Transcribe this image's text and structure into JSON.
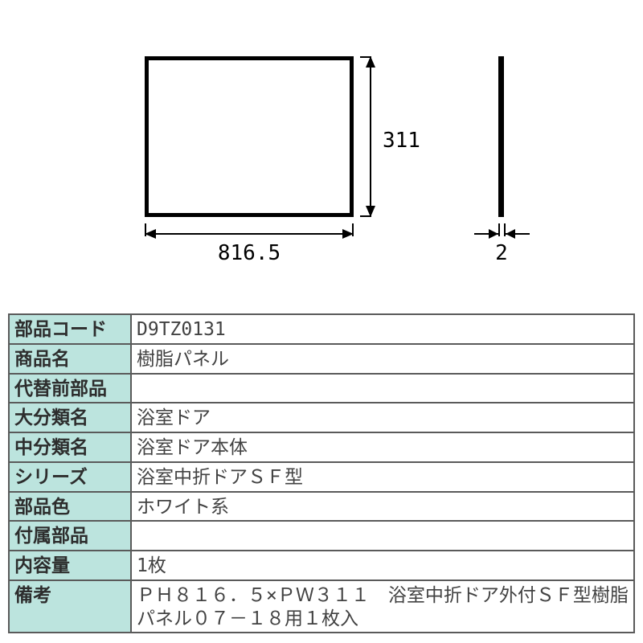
{
  "diagram": {
    "type": "technical-drawing",
    "front": {
      "width_label": "816.5",
      "height_label": "311"
    },
    "side": {
      "thickness_label": "2"
    },
    "line_color": "#000000",
    "label_fontsize": 26
  },
  "table": {
    "header_bg": "#bce4de",
    "border_color": "#5a5a5a",
    "fontsize": 23,
    "rows": [
      {
        "label": "部品コード",
        "value": "D9TZ0131"
      },
      {
        "label": "商品名",
        "value": "樹脂パネル"
      },
      {
        "label": "代替前部品",
        "value": ""
      },
      {
        "label": "大分類名",
        "value": "浴室ドア"
      },
      {
        "label": "中分類名",
        "value": "浴室ドア本体"
      },
      {
        "label": "シリーズ",
        "value": "浴室中折ドアＳＦ型"
      },
      {
        "label": "部品色",
        "value": "ホワイト系"
      },
      {
        "label": "付属部品",
        "value": ""
      },
      {
        "label": "内容量",
        "value": "1枚"
      },
      {
        "label": "備考",
        "value": "ＰＨ８１６．５×ＰＷ３１１　浴室中折ドア外付ＳＦ型樹脂パネル０７－１８用１枚入"
      }
    ]
  }
}
